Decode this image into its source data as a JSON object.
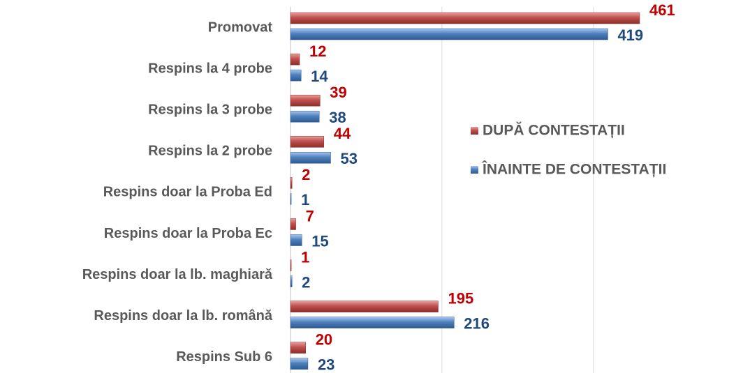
{
  "chart_data": {
    "type": "bar",
    "orientation": "horizontal",
    "categories": [
      "Promovat",
      "Respins la 4 probe",
      "Respins la 3 probe",
      "Respins la 2 probe",
      "Respins doar la Proba Ed",
      "Respins doar la Proba Ec",
      "Respins doar la lb. maghiară",
      "Respins doar la lb. română",
      "Respins Sub 6"
    ],
    "series": [
      {
        "name": "DUPĂ CONTESTAȚII",
        "color": "#c0504d",
        "label_color": "#c00000",
        "values": [
          461,
          12,
          39,
          44,
          2,
          7,
          1,
          195,
          20
        ]
      },
      {
        "name": "ÎNAINTE DE CONTESTAȚII",
        "color": "#4f81bd",
        "label_color": "#1f497d",
        "values": [
          419,
          14,
          38,
          53,
          1,
          15,
          2,
          216,
          23
        ]
      }
    ],
    "xlim": [
      0,
      600
    ],
    "xticks": [
      0,
      200,
      400
    ],
    "grid": true,
    "legend": "right"
  }
}
